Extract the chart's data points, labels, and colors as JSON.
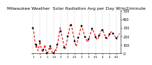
{
  "title": "Milwaukee Weather  Solar Radiation Avg per Day W/m2/minute",
  "y_values": [
    300,
    260,
    180,
    120,
    70,
    100,
    50,
    30,
    60,
    100,
    140,
    90,
    50,
    30,
    10,
    40,
    70,
    100,
    50,
    20,
    5,
    5,
    30,
    60,
    40,
    80,
    50,
    20,
    5,
    5,
    5,
    20,
    50,
    30,
    60,
    100,
    150,
    200,
    260,
    300,
    260,
    220,
    180,
    140,
    100,
    70,
    50,
    80,
    120,
    160,
    200,
    240,
    280,
    320,
    350,
    330,
    290,
    250,
    210,
    170,
    140,
    100,
    80,
    110,
    150,
    180,
    210,
    250,
    280,
    310,
    320,
    290,
    260,
    230,
    210,
    190,
    170,
    150,
    130,
    150,
    170,
    190,
    220,
    250,
    270,
    290,
    270,
    250,
    230,
    210,
    190,
    170,
    160,
    170,
    190,
    210,
    230,
    250,
    270,
    280,
    270,
    250,
    230,
    210,
    200,
    185,
    170,
    180,
    195,
    210,
    225,
    240,
    250,
    255,
    248,
    235,
    220,
    205,
    192,
    183,
    175,
    188,
    202,
    218,
    232
  ],
  "line_color": "#dd0000",
  "marker_color": "#000000",
  "grid_color": "#aaaaaa",
  "bg_color": "#ffffff",
  "yticks": [
    0,
    100,
    200,
    300,
    400,
    500
  ],
  "ylim": [
    0,
    500
  ],
  "title_fontsize": 4.5,
  "tick_fontsize": 3.5,
  "line_width": 0.8,
  "marker_size": 1.5
}
